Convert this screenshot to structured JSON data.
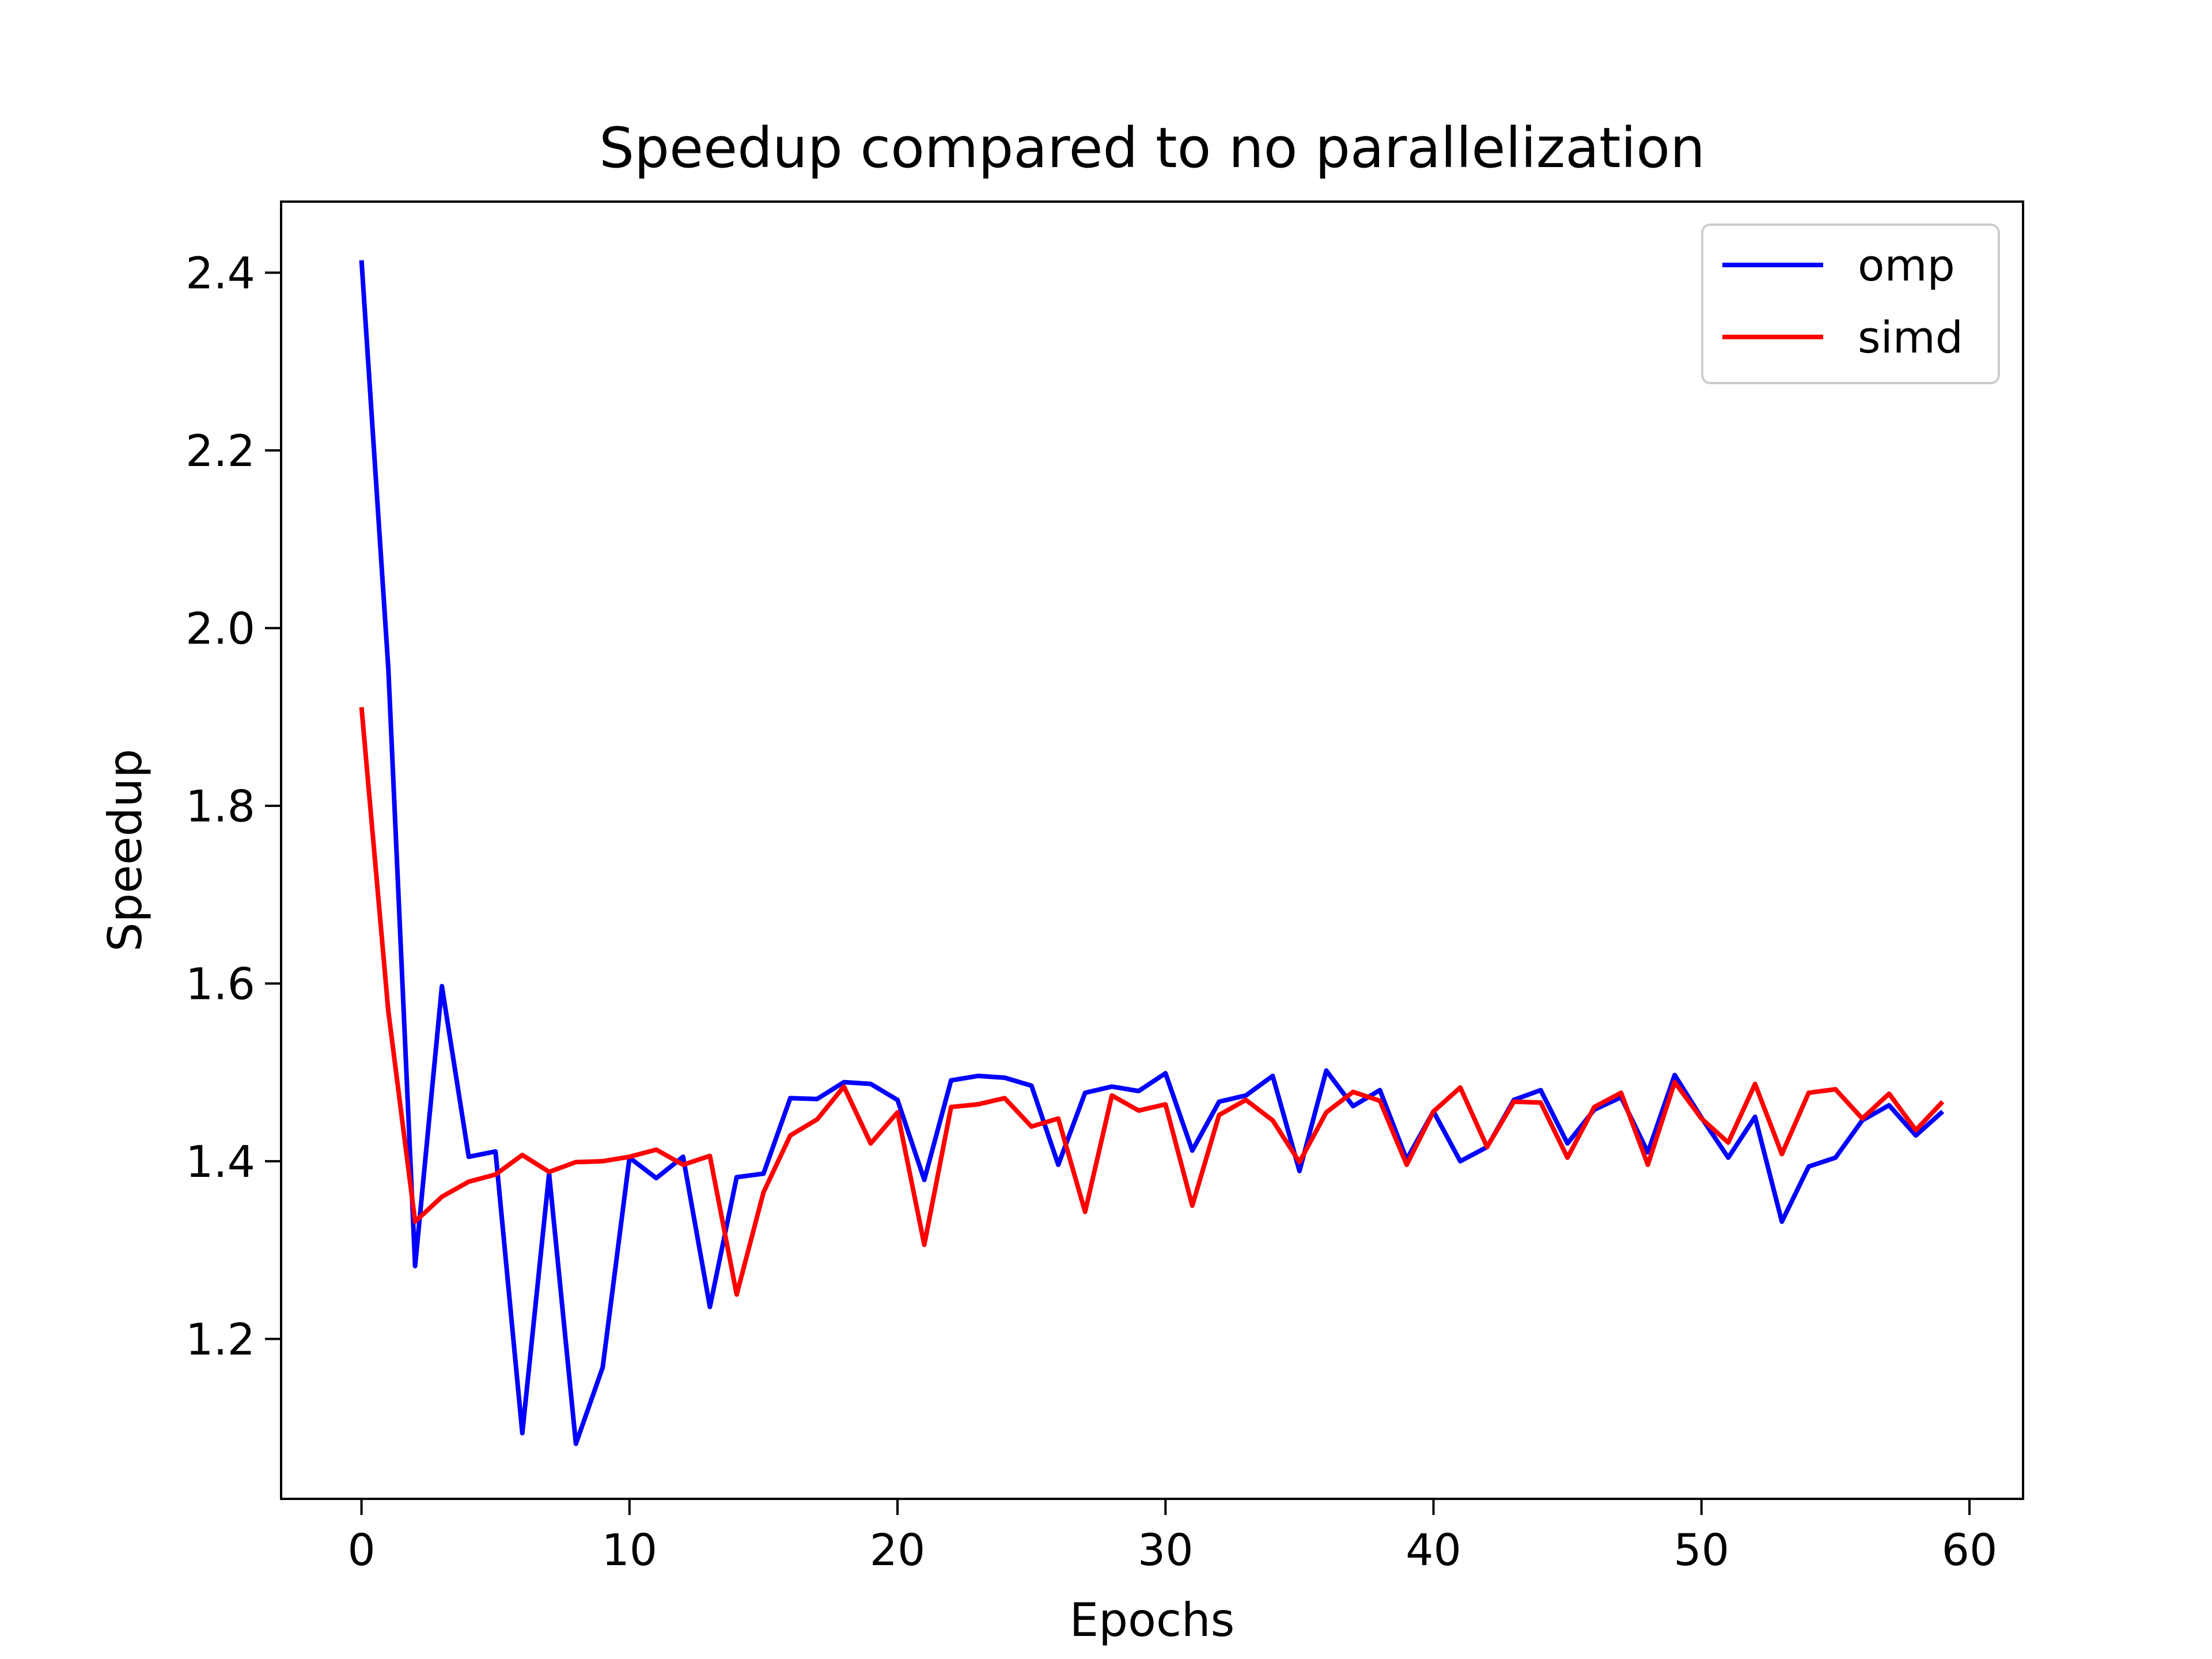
{
  "chart_data": {
    "type": "line",
    "title": "Speedup compared to no parallelization",
    "xlabel": "Epochs",
    "ylabel": "Speedup",
    "xlim": [
      -3,
      62
    ],
    "ylim": [
      1.02,
      2.48
    ],
    "xticks": [
      "0",
      "10",
      "20",
      "30",
      "40",
      "50",
      "60"
    ],
    "yticks": [
      "1.2",
      "1.4",
      "1.6",
      "1.8",
      "2.0",
      "2.2",
      "2.4"
    ],
    "grid": false,
    "legend_position": "top-right",
    "x": [
      0,
      1,
      2,
      3,
      4,
      5,
      6,
      7,
      8,
      9,
      10,
      11,
      12,
      13,
      14,
      15,
      16,
      17,
      18,
      19,
      20,
      21,
      22,
      23,
      24,
      25,
      26,
      27,
      28,
      29,
      30,
      31,
      32,
      33,
      34,
      35,
      36,
      37,
      38,
      39,
      40,
      41,
      42,
      43,
      44,
      45,
      46,
      47,
      48,
      49,
      50,
      51,
      52,
      53,
      54,
      55,
      56,
      57,
      58,
      59
    ],
    "series": [
      {
        "name": "omp",
        "color": "#0000ff",
        "values": [
          2.414,
          1.955,
          1.282,
          1.597,
          1.405,
          1.411,
          1.094,
          1.386,
          1.082,
          1.168,
          1.404,
          1.381,
          1.405,
          1.236,
          1.382,
          1.386,
          1.471,
          1.47,
          1.489,
          1.487,
          1.469,
          1.379,
          1.491,
          1.496,
          1.494,
          1.485,
          1.396,
          1.477,
          1.484,
          1.479,
          1.499,
          1.412,
          1.467,
          1.474,
          1.496,
          1.389,
          1.502,
          1.462,
          1.48,
          1.402,
          1.456,
          1.4,
          1.416,
          1.469,
          1.48,
          1.42,
          1.458,
          1.472,
          1.41,
          1.497,
          1.449,
          1.404,
          1.45,
          1.332,
          1.394,
          1.404,
          1.446,
          1.463,
          1.429,
          1.456
        ]
      },
      {
        "name": "simd",
        "color": "#ff0000",
        "values": [
          1.911,
          1.569,
          1.332,
          1.36,
          1.377,
          1.385,
          1.407,
          1.388,
          1.399,
          1.4,
          1.405,
          1.413,
          1.396,
          1.406,
          1.25,
          1.365,
          1.429,
          1.447,
          1.484,
          1.42,
          1.455,
          1.306,
          1.461,
          1.464,
          1.471,
          1.439,
          1.448,
          1.343,
          1.474,
          1.457,
          1.464,
          1.35,
          1.452,
          1.469,
          1.446,
          1.399,
          1.455,
          1.478,
          1.468,
          1.396,
          1.456,
          1.483,
          1.416,
          1.467,
          1.466,
          1.404,
          1.461,
          1.477,
          1.396,
          1.489,
          1.448,
          1.421,
          1.487,
          1.408,
          1.477,
          1.481,
          1.448,
          1.476,
          1.435,
          1.467
        ]
      }
    ]
  }
}
